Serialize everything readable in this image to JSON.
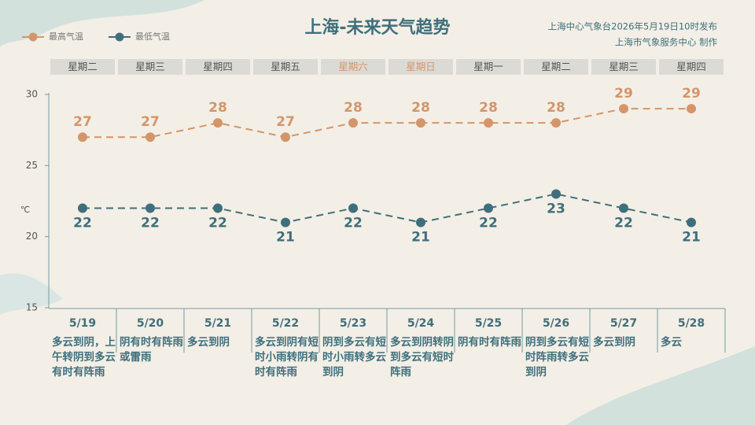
{
  "chart_data": {
    "type": "line",
    "title": "上海-未来天气趋势",
    "subtitle": [
      "上海中心气象台2026年5月19日10时发布",
      "上海市气象服务中心  制作"
    ],
    "y_label": "℃",
    "weekdays": [
      "星期二",
      "星期三",
      "星期四",
      "星期五",
      "星期六",
      "星期日",
      "星期一",
      "星期二",
      "星期三",
      "星期四"
    ],
    "weekday_colors": [
      "#555555",
      "#555555",
      "#555555",
      "#555555",
      "#d4956a",
      "#d4956a",
      "#555555",
      "#555555",
      "#555555",
      "#555555"
    ],
    "categories": [
      "5/19",
      "5/20",
      "5/21",
      "5/22",
      "5/23",
      "5/24",
      "5/25",
      "5/26",
      "5/27",
      "5/28"
    ],
    "weather": [
      "多云到阴，上午转阴到多云有时有阵雨",
      "阴有时有阵雨或雷雨",
      "多云到阴",
      "多云到阴有短时小雨转阴有时有阵雨",
      "阴到多云有短时小雨转多云到阴",
      "多云到阴转阴到多云有短时阵雨",
      "阴有时有阵雨",
      "阴到多云有短时阵雨转多云到阴",
      "多云到阴",
      "多云"
    ],
    "series": [
      {
        "name": "最高气温",
        "color": "#d4956a",
        "values": [
          27,
          27,
          28,
          27,
          28,
          28,
          28,
          28,
          29,
          29
        ]
      },
      {
        "name": "最低气温",
        "color": "#3f6f7c",
        "values": [
          22,
          22,
          22,
          21,
          22,
          21,
          22,
          23,
          22,
          21
        ]
      }
    ],
    "ylim": [
      15,
      30
    ],
    "yticks": [
      15,
      20,
      25,
      30
    ]
  }
}
